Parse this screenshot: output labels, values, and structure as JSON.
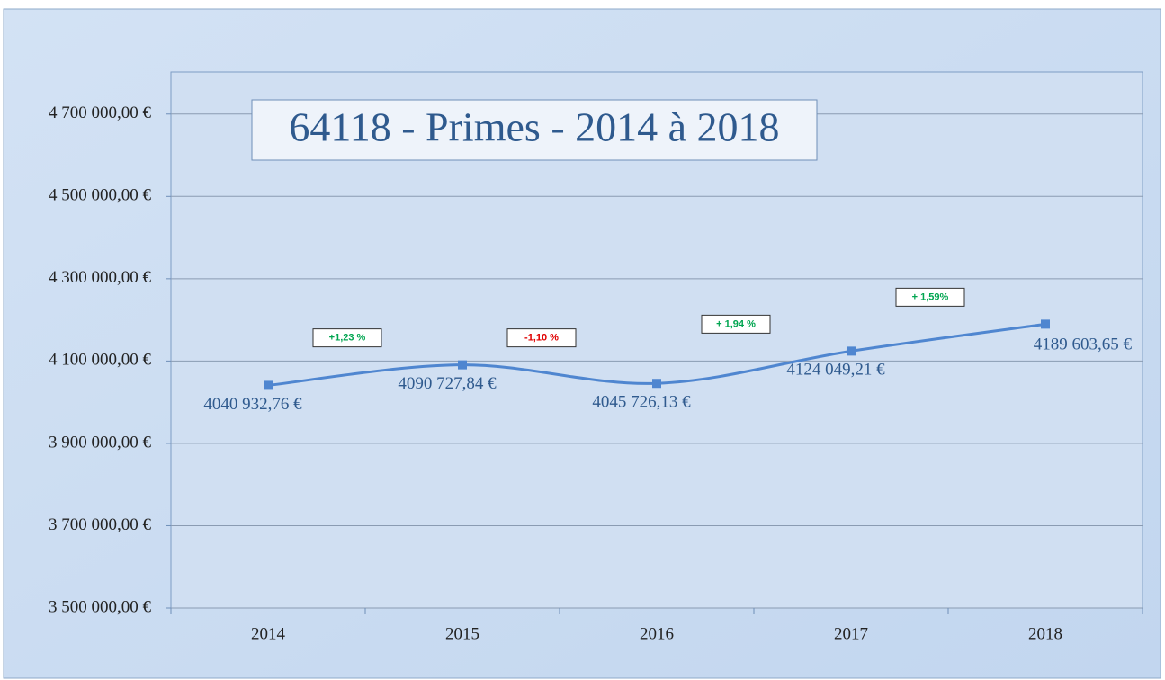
{
  "chart_data": {
    "type": "line",
    "title": "64118 - Primes - 2014 à 2018",
    "categories": [
      "2014",
      "2015",
      "2016",
      "2017",
      "2018"
    ],
    "series": [
      {
        "name": "Primes",
        "color": "#4f86d0",
        "values": [
          4040932.76,
          4090727.84,
          4045726.13,
          4124049.21,
          4189603.65
        ],
        "value_labels": [
          "4040 932,76 €",
          "4090 727,84 €",
          "4045 726,13 €",
          "4124 049,21 €",
          "4189 603,65 €"
        ]
      }
    ],
    "annotations": [
      {
        "text": "+1,23 %",
        "color": "#00a550"
      },
      {
        "text": "-1,10 %",
        "color": "#e00000"
      },
      {
        "text": "+ 1,94 %",
        "color": "#00a550"
      },
      {
        "text": "+ 1,59%",
        "color": "#00a550"
      }
    ],
    "ylim": [
      3500000,
      4800000
    ],
    "yticks": [
      {
        "value": 3500000,
        "label": "3 500 000,00 €"
      },
      {
        "value": 3700000,
        "label": "3 700 000,00 €"
      },
      {
        "value": 3900000,
        "label": "3 900 000,00 €"
      },
      {
        "value": 4100000,
        "label": "4 100 000,00 €"
      },
      {
        "value": 4300000,
        "label": "4 300 000,00 €"
      },
      {
        "value": 4500000,
        "label": "4 500 000,00 €"
      },
      {
        "value": 4700000,
        "label": "4 700 000,00 €"
      }
    ],
    "grid": true,
    "smooth": true
  }
}
